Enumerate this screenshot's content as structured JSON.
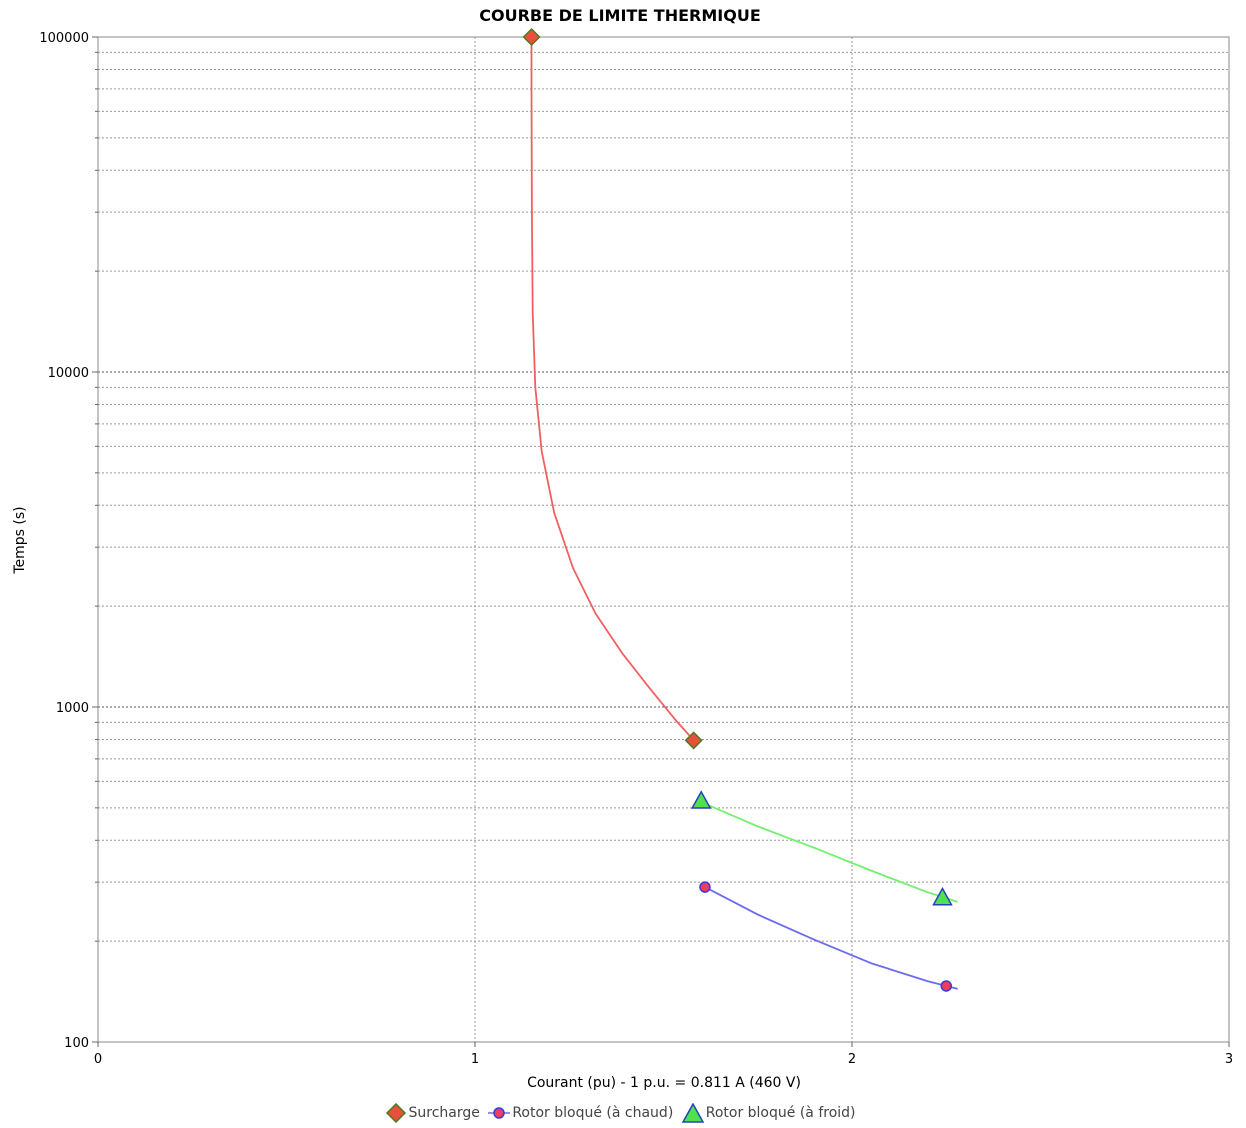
{
  "chart_data": {
    "type": "line",
    "title": "COURBE DE LIMITE THERMIQUE",
    "xlabel": "Courant (pu) - 1 p.u. = 0.811 A (460 V)",
    "ylabel": "Temps (s)",
    "xlim": [
      0,
      3
    ],
    "ylim": [
      100,
      100000
    ],
    "yscale": "log",
    "x_ticks": [
      "0",
      "1",
      "2",
      "3"
    ],
    "y_ticks": [
      "100",
      "1000",
      "10000",
      "100000"
    ],
    "grid": true,
    "legend_position": "bottom",
    "series": [
      {
        "name": "Surcharge",
        "color": "#f06060",
        "marker": "diamond",
        "marker_color": "#e8503c",
        "marker_edge": "#4f7a1e",
        "x": [
          1.15,
          1.15,
          1.151,
          1.153,
          1.16,
          1.177,
          1.21,
          1.26,
          1.32,
          1.39,
          1.46,
          1.53,
          1.58
        ],
        "y": [
          100000,
          70000,
          30000,
          15000,
          9000,
          5800,
          3800,
          2600,
          1900,
          1450,
          1150,
          920,
          795
        ],
        "markers_x": [
          1.15,
          1.58
        ],
        "markers_y": [
          100000,
          795
        ]
      },
      {
        "name": "Rotor bloqué (à chaud)",
        "color": "#6a6af0",
        "marker": "circle",
        "marker_color": "#ee3c62",
        "marker_edge": "#3a3ad8",
        "x": [
          1.61,
          1.75,
          1.9,
          2.05,
          2.2,
          2.28
        ],
        "y": [
          290,
          240,
          202,
          172,
          152,
          144
        ],
        "markers_x": [
          1.61,
          2.25
        ],
        "markers_y": [
          290,
          147
        ]
      },
      {
        "name": "Rotor bloqué (à froid)",
        "color": "#72f072",
        "marker": "triangle",
        "marker_color": "#50e050",
        "marker_edge": "#2244bb",
        "x": [
          1.6,
          1.75,
          1.9,
          2.05,
          2.2,
          2.28
        ],
        "y": [
          520,
          440,
          380,
          325,
          280,
          262
        ],
        "markers_x": [
          1.6,
          2.24
        ],
        "markers_y": [
          525,
          270
        ]
      }
    ]
  }
}
